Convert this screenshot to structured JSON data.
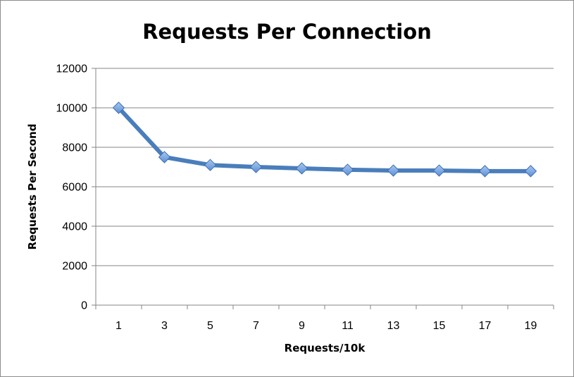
{
  "chart_data": {
    "type": "line",
    "title": "Requests Per Connection",
    "xlabel": "Requests/10k",
    "ylabel": "Requests Per Second",
    "categories": [
      "1",
      "3",
      "5",
      "7",
      "9",
      "11",
      "13",
      "15",
      "17",
      "19"
    ],
    "series": [
      {
        "values": [
          10000,
          7500,
          7100,
          7000,
          6930,
          6860,
          6820,
          6820,
          6790,
          6790
        ]
      }
    ],
    "ylim": [
      0,
      12000
    ],
    "yticks": [
      0,
      2000,
      4000,
      6000,
      8000,
      10000,
      12000
    ],
    "grid": true,
    "legend": "none",
    "colors": {
      "line": "#4a7ebb",
      "marker_fill": "#7ba7e0",
      "marker_stroke": "#3f6fb0",
      "grid": "#868686",
      "axis": "#868686"
    }
  }
}
